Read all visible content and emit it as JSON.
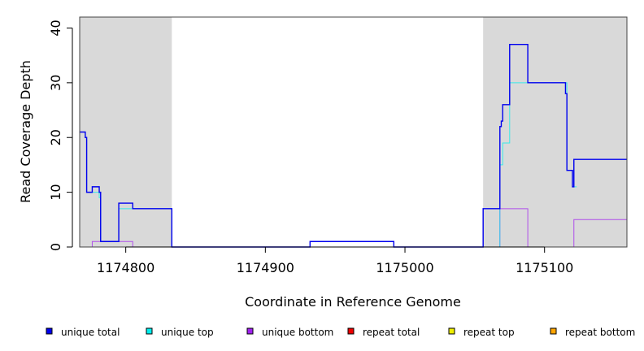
{
  "chart_data": {
    "type": "line",
    "xlabel": "Coordinate in Reference Genome",
    "ylabel": "Read Coverage Depth",
    "xlim": [
      1174767,
      1175159
    ],
    "ylim": [
      0,
      42
    ],
    "x_ticks": [
      1174800,
      1174900,
      1175000,
      1175100
    ],
    "x_tick_labels": [
      "1174800",
      "1174900",
      "1175000",
      "1175100"
    ],
    "y_ticks": [
      0,
      10,
      20,
      30,
      40
    ],
    "y_tick_labels": [
      "0",
      "10",
      "20",
      "30",
      "40"
    ],
    "grid": false,
    "legend_position": "bottom",
    "shaded_regions": [
      {
        "start": 1174767,
        "end": 1174833,
        "color": "#d9d9d9"
      },
      {
        "start": 1175056,
        "end": 1175159,
        "color": "#d9d9d9"
      }
    ],
    "series": [
      {
        "name": "unique total",
        "color": "#0000ee",
        "points": [
          [
            1174767,
            21
          ],
          [
            1174771,
            21
          ],
          [
            1174771,
            20
          ],
          [
            1174772,
            20
          ],
          [
            1174772,
            10
          ],
          [
            1174776,
            10
          ],
          [
            1174776,
            11
          ],
          [
            1174781,
            11
          ],
          [
            1174781,
            10
          ],
          [
            1174782,
            10
          ],
          [
            1174782,
            1
          ],
          [
            1174795,
            1
          ],
          [
            1174795,
            8
          ],
          [
            1174805,
            8
          ],
          [
            1174805,
            7
          ],
          [
            1174818,
            7
          ],
          [
            1174818,
            7
          ],
          [
            1174833,
            7
          ],
          [
            1174833,
            0
          ],
          [
            1174932,
            0
          ],
          [
            1174932,
            1
          ],
          [
            1174992,
            1
          ],
          [
            1174992,
            0
          ],
          [
            1175056,
            0
          ],
          [
            1175056,
            7
          ],
          [
            1175068,
            7
          ],
          [
            1175068,
            22
          ],
          [
            1175069,
            22
          ],
          [
            1175069,
            23
          ],
          [
            1175070,
            23
          ],
          [
            1175070,
            26
          ],
          [
            1175075,
            26
          ],
          [
            1175075,
            37
          ],
          [
            1175088,
            37
          ],
          [
            1175088,
            30
          ],
          [
            1175100,
            30
          ],
          [
            1175100,
            30
          ],
          [
            1175115,
            30
          ],
          [
            1175115,
            28
          ],
          [
            1175116,
            28
          ],
          [
            1175116,
            14
          ],
          [
            1175120,
            14
          ],
          [
            1175120,
            11
          ],
          [
            1175121,
            11
          ],
          [
            1175121,
            16
          ],
          [
            1175159,
            16
          ]
        ]
      },
      {
        "name": "unique top",
        "color": "#00eeee",
        "points": [
          [
            1174767,
            21
          ],
          [
            1174771,
            21
          ],
          [
            1174771,
            20
          ],
          [
            1174772,
            20
          ],
          [
            1174772,
            10
          ],
          [
            1174781,
            10
          ],
          [
            1174781,
            9
          ],
          [
            1174782,
            9
          ],
          [
            1174782,
            1
          ],
          [
            1174795,
            1
          ],
          [
            1174795,
            7
          ],
          [
            1174818,
            7
          ],
          [
            1174818,
            7
          ],
          [
            1174833,
            7
          ],
          [
            1174833,
            0
          ],
          [
            1175068,
            0
          ],
          [
            1175068,
            15
          ],
          [
            1175070,
            15
          ],
          [
            1175070,
            19
          ],
          [
            1175075,
            19
          ],
          [
            1175075,
            30
          ],
          [
            1175116,
            30
          ],
          [
            1175116,
            14
          ],
          [
            1175120,
            14
          ],
          [
            1175120,
            11
          ],
          [
            1175123,
            11
          ]
        ]
      },
      {
        "name": "unique bottom",
        "color": "#a020f0",
        "points": [
          [
            1174767,
            0
          ],
          [
            1174776,
            0
          ],
          [
            1174776,
            1
          ],
          [
            1174805,
            1
          ],
          [
            1174805,
            0
          ],
          [
            1175056,
            0
          ],
          [
            1175056,
            0
          ],
          [
            1175068,
            0
          ],
          [
            1175068,
            7
          ],
          [
            1175088,
            7
          ],
          [
            1175088,
            0
          ],
          [
            1175121,
            0
          ],
          [
            1175121,
            5
          ],
          [
            1175159,
            5
          ]
        ]
      },
      {
        "name": "repeat total",
        "color": "#ee0000",
        "points": [
          [
            1174767,
            0
          ],
          [
            1175159,
            0
          ]
        ]
      },
      {
        "name": "repeat top",
        "color": "#eeee00",
        "points": [
          [
            1174767,
            0
          ],
          [
            1175159,
            0
          ]
        ]
      },
      {
        "name": "repeat bottom",
        "color": "#ffa500",
        "points": [
          [
            1174767,
            0
          ],
          [
            1175159,
            0
          ]
        ]
      }
    ]
  }
}
